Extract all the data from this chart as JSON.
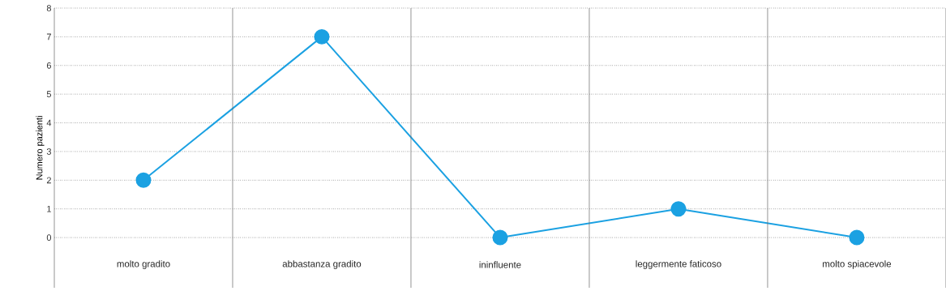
{
  "chart_data": {
    "type": "line",
    "ylabel": "Numero pazienti",
    "categories": [
      "molto gradito",
      "abbastanza gradito",
      "ininfluente",
      "leggermente faticoso",
      "molto spiacevole"
    ],
    "values": [
      2,
      7,
      0,
      1,
      0
    ],
    "color": "#1ba1e2",
    "marker": "circle",
    "ylim": [
      -1.75,
      8
    ],
    "yticks": [
      0,
      1,
      2,
      3,
      4,
      5,
      6,
      7,
      8
    ],
    "grid": "y"
  }
}
